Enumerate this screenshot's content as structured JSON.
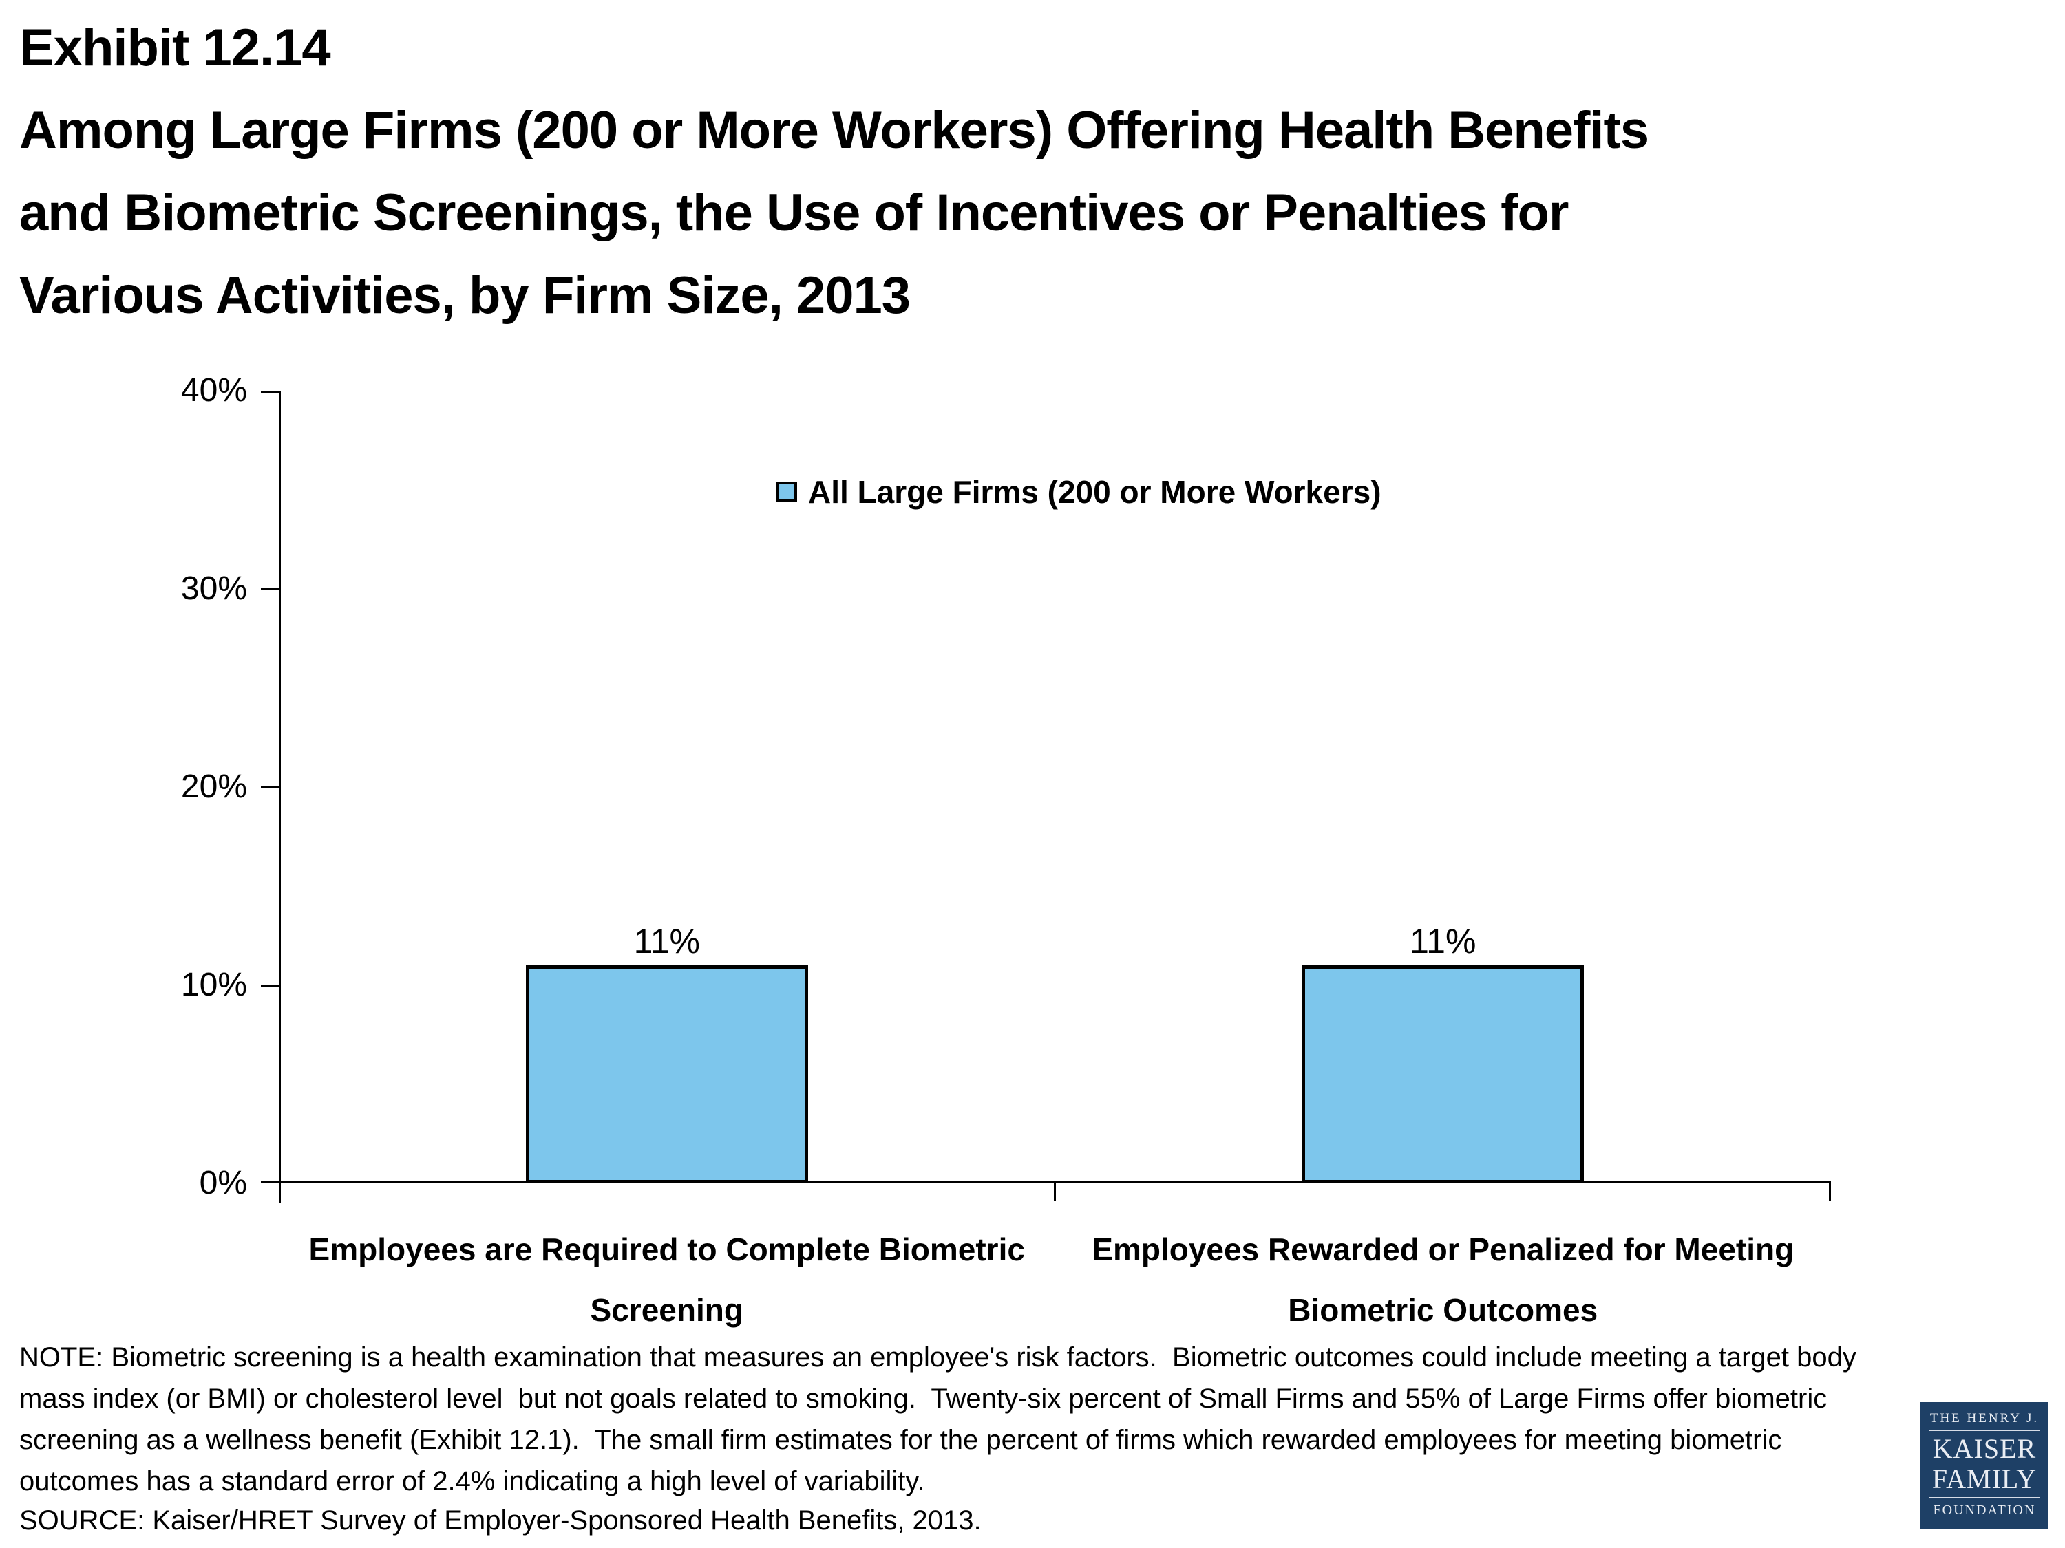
{
  "header": {
    "exhibit": "Exhibit 12.14",
    "title_lines": [
      "Among Large Firms (200 or More Workers) Offering Health Benefits",
      "and Biometric Screenings, the Use of Incentives or Penalties for",
      "Various Activities, by Firm Size, 2013"
    ]
  },
  "chart_data": {
    "type": "bar",
    "title": "Exhibit 12.14 — Among Large Firms (200 or More Workers) Offering Health Benefits and Biometric Screenings, the Use of Incentives or Penalties for Various Activities, by Firm Size, 2013",
    "categories": [
      "Employees are Required to Complete Biometric Screening",
      "Employees Rewarded or Penalized for Meeting Biometric Outcomes"
    ],
    "category_label_lines": [
      [
        "Employees are Required to Complete Biometric",
        "Screening"
      ],
      [
        "Employees Rewarded or Penalized for Meeting",
        "Biometric Outcomes"
      ]
    ],
    "series": [
      {
        "name": "All Large Firms (200 or More Workers)",
        "values": [
          11,
          11
        ]
      }
    ],
    "value_labels": [
      "11%",
      "11%"
    ],
    "ylim": [
      0,
      40
    ],
    "ytick_values": [
      0,
      10,
      20,
      30,
      40
    ],
    "ytick_labels": [
      "0%",
      "10%",
      "20%",
      "30%",
      "40%"
    ],
    "grid": false,
    "legend_label": "All Large Firms (200 or More Workers)",
    "legend_position": "inside-top-center",
    "bar_fill": "#7DC6EC",
    "bar_border": "#000000",
    "axis_color": "#000000"
  },
  "note": "NOTE: Biometric screening is a health examination that measures an employee's risk factors.  Biometric outcomes could include meeting a target body mass index (or BMI) or cholesterol level  but not goals related to smoking.  Twenty-six percent of Small Firms and 55% of Large Firms offer biometric screening as a wellness benefit (Exhibit 12.1).  The small firm estimates for the percent of firms which rewarded employees for meeting biometric outcomes has a standard error of 2.4% indicating a high level of variability.",
  "source": "SOURCE: Kaiser/HRET Survey of Employer-Sponsored Health Benefits, 2013.",
  "logo": {
    "line1": "THE HENRY J.",
    "line2": "KAISER",
    "line3": "FAMILY",
    "line4": "FOUNDATION",
    "background": "#1E4066"
  }
}
